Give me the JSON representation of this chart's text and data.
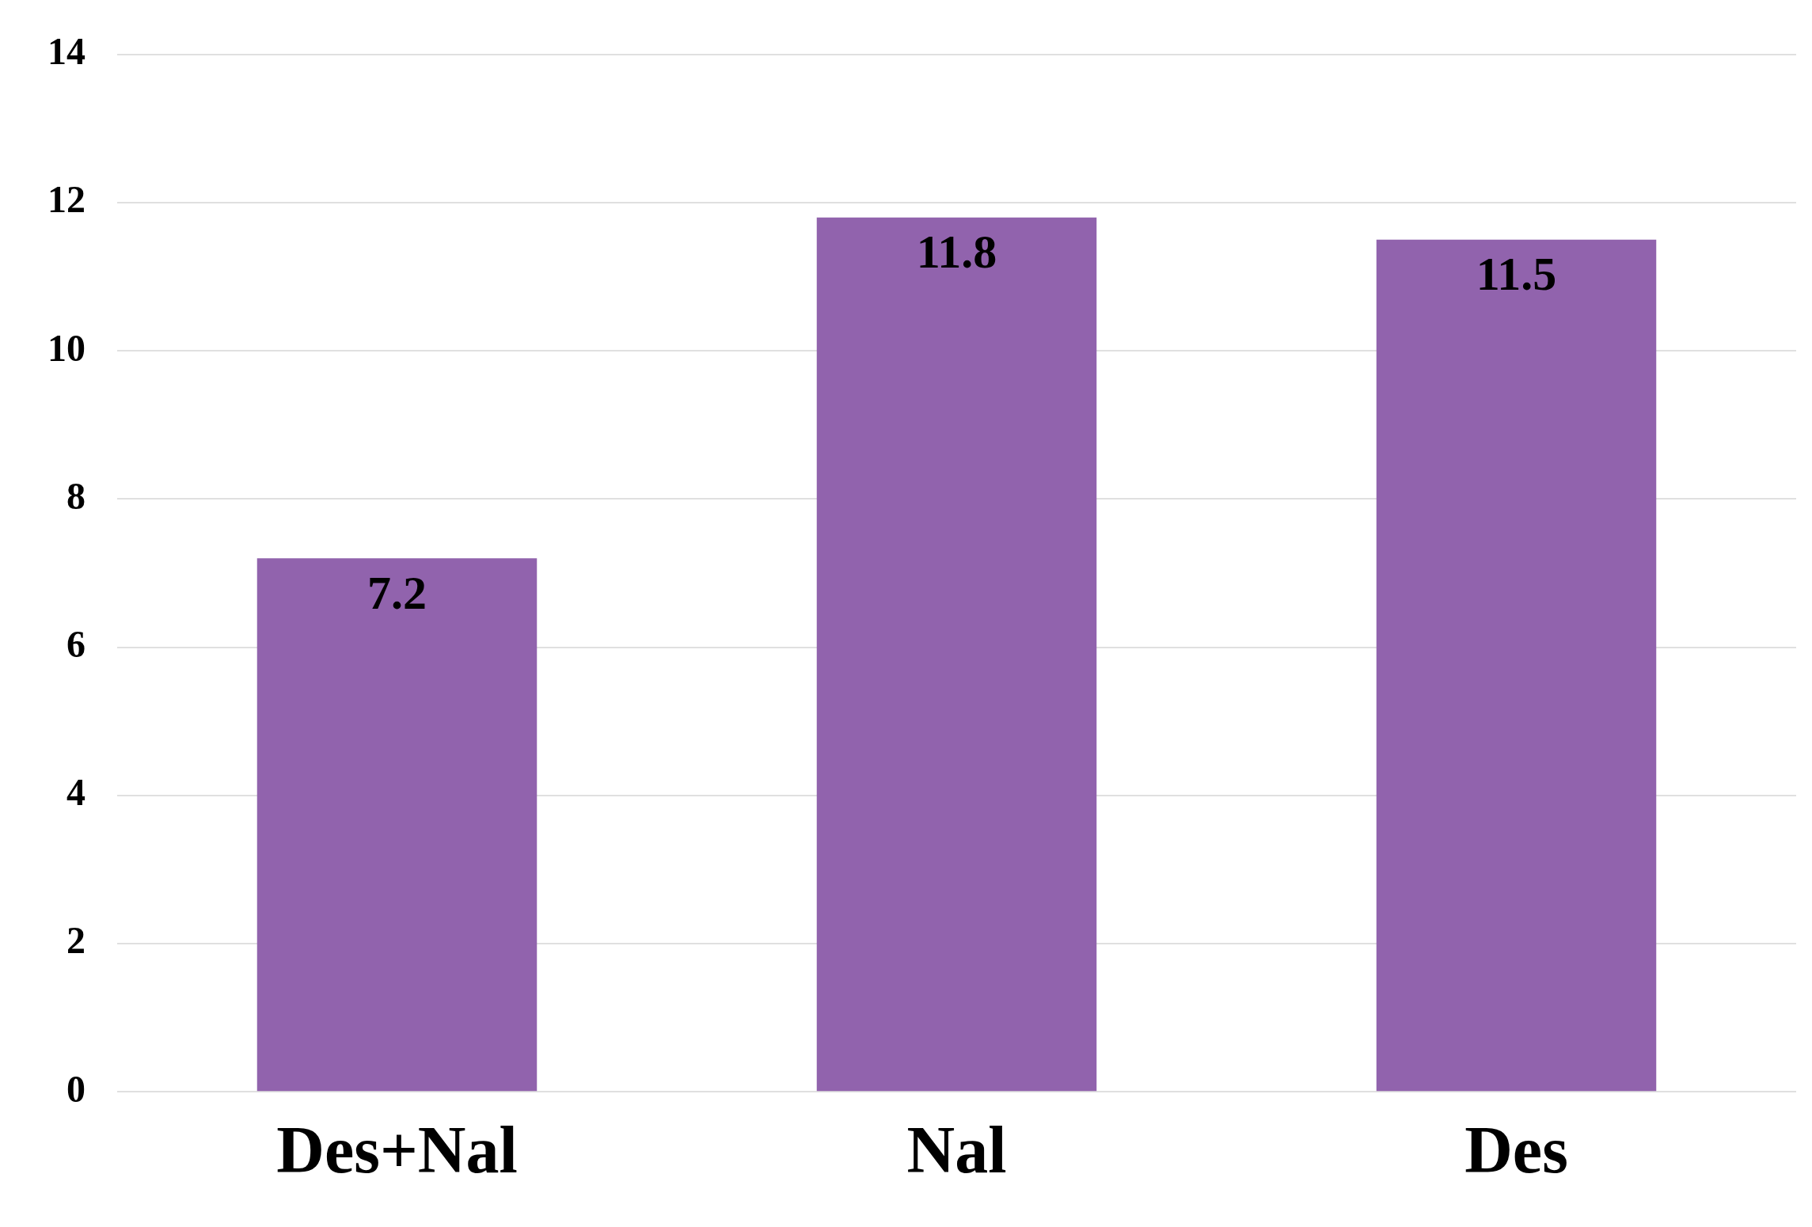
{
  "chart_data": {
    "type": "bar",
    "categories": [
      "Des+Nal",
      "Nal",
      "Des"
    ],
    "values": [
      7.2,
      11.8,
      11.5
    ],
    "color": "#9163ad",
    "ylim": [
      0,
      14
    ],
    "yticks": [
      0,
      2,
      4,
      6,
      8,
      10,
      12,
      14
    ],
    "grid": "y",
    "data_labels": true
  }
}
